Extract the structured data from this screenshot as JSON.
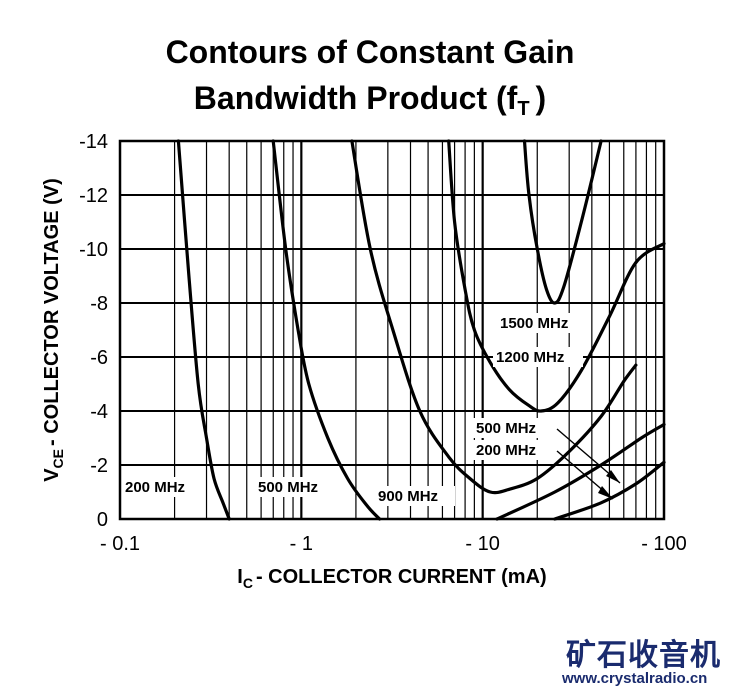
{
  "chart_data": {
    "type": "line",
    "title_line1": "Contours of Constant Gain",
    "title_line2_main": "Bandwidth Product (f",
    "title_line2_sub": "T",
    "title_line2_end": ")",
    "xlabel_main": "I",
    "xlabel_sub": "C",
    "xlabel_rest": "- COLLECTOR CURRENT (mA)",
    "ylabel_main": "V",
    "ylabel_sub": "CE",
    "ylabel_rest": "- COLLECTOR VOLTAGE (V)",
    "x_scale": "log",
    "xlim": [
      0.1,
      100
    ],
    "ylim": [
      0,
      14
    ],
    "grid": true,
    "x_tick_labels": [
      "- 0.1",
      "- 1",
      "- 10",
      "- 100"
    ],
    "y_tick_labels": [
      "0",
      "-2",
      "-4",
      "-6",
      "-8",
      "-10",
      "-12",
      "-14"
    ],
    "series": [
      {
        "name": "200 MHz",
        "points": [
          [
            0.21,
            14
          ],
          [
            0.24,
            9
          ],
          [
            0.27,
            5
          ],
          [
            0.3,
            3
          ],
          [
            0.33,
            1.5
          ],
          [
            0.37,
            0.6
          ],
          [
            0.4,
            0
          ]
        ]
      },
      {
        "name": "500 MHz",
        "points": [
          [
            0.7,
            14
          ],
          [
            0.82,
            10
          ],
          [
            0.96,
            7
          ],
          [
            1.1,
            5
          ],
          [
            1.4,
            3
          ],
          [
            1.8,
            1.5
          ],
          [
            2.3,
            0.5
          ],
          [
            2.7,
            0
          ]
        ]
      },
      {
        "name": "900 MHz",
        "points": [
          [
            1.9,
            14
          ],
          [
            2.4,
            10
          ],
          [
            3.2,
            7
          ],
          [
            4.5,
            4
          ],
          [
            6.5,
            2.3
          ],
          [
            8.5,
            1.5
          ],
          [
            11.0,
            1.0
          ],
          [
            14.0,
            1.1
          ],
          [
            20.0,
            1.5
          ],
          [
            30.0,
            2.5
          ],
          [
            45.0,
            3.8
          ],
          [
            60.0,
            5.1
          ],
          [
            70.0,
            5.7
          ]
        ]
      },
      {
        "name": "1200 MHz",
        "points": [
          [
            6.5,
            14
          ],
          [
            7.0,
            11
          ],
          [
            8.0,
            8.5
          ],
          [
            9.0,
            7
          ],
          [
            11.0,
            5.8
          ],
          [
            14.0,
            4.8
          ],
          [
            18.0,
            4.2
          ],
          [
            21.0,
            4.0
          ],
          [
            26.0,
            4.3
          ],
          [
            35.0,
            5.5
          ],
          [
            50.0,
            7.5
          ],
          [
            70.0,
            9.5
          ],
          [
            100.0,
            10.2
          ]
        ]
      },
      {
        "name": "1500 MHz",
        "points": [
          [
            17.0,
            14
          ],
          [
            18.0,
            12
          ],
          [
            20.0,
            10
          ],
          [
            22.5,
            8.5
          ],
          [
            25.0,
            8.0
          ],
          [
            28.0,
            8.6
          ],
          [
            35.0,
            11
          ],
          [
            45.0,
            14
          ]
        ]
      },
      {
        "name": "500 MHz",
        "points": [
          [
            12.0,
            0
          ],
          [
            25.0,
            1
          ],
          [
            45.0,
            2
          ],
          [
            75.0,
            3
          ],
          [
            100.0,
            3.5
          ]
        ]
      },
      {
        "name": "200 MHz",
        "points": [
          [
            25.0,
            0
          ],
          [
            45.0,
            0.6
          ],
          [
            70.0,
            1.3
          ],
          [
            100.0,
            2.1
          ]
        ]
      }
    ],
    "annotations": [
      {
        "text": "200 MHz"
      },
      {
        "text": "500 MHz"
      },
      {
        "text": "900 MHz"
      },
      {
        "text": "1500 MHz"
      },
      {
        "text": "1200 MHz"
      },
      {
        "text": "500 MHz"
      },
      {
        "text": "200 MHz"
      }
    ]
  },
  "watermark": {
    "cn": "矿石收音机",
    "url": "www.crystalradio.cn",
    "color": "#1a2b6e"
  }
}
